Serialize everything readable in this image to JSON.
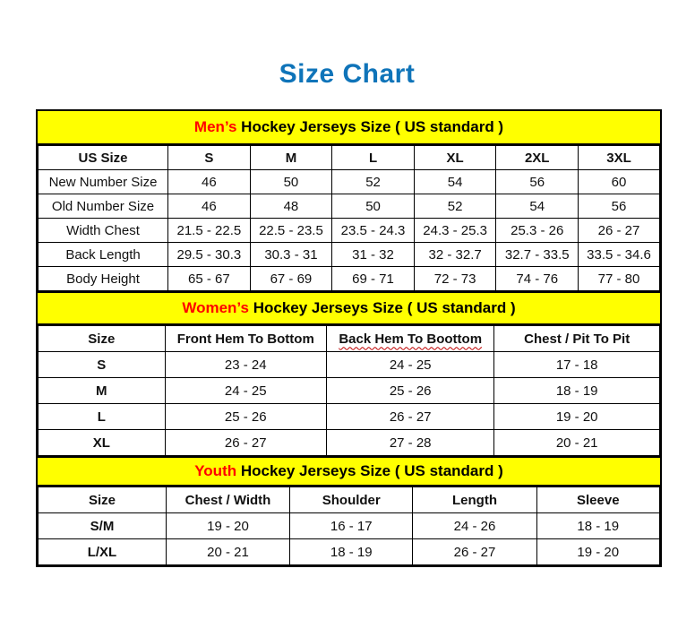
{
  "page": {
    "title": "Size Chart"
  },
  "colors": {
    "title_blue": "#0f74b9",
    "banner_yellow": "#ffff00",
    "accent_red": "#ff0000",
    "squiggle_red": "#c00000",
    "border_black": "#000000",
    "background": "#ffffff"
  },
  "chart_data": [
    {
      "type": "table",
      "banner": {
        "highlight": "Men’s",
        "rest": " Hockey Jerseys Size ( US standard )"
      },
      "columns": [
        "US Size",
        "S",
        "M",
        "L",
        "XL",
        "2XL",
        "3XL"
      ],
      "label_bold": false,
      "rows": [
        {
          "label": "New Number Size",
          "values": [
            "46",
            "50",
            "52",
            "54",
            "56",
            "60"
          ]
        },
        {
          "label": "Old Number Size",
          "values": [
            "46",
            "48",
            "50",
            "52",
            "54",
            "56"
          ]
        },
        {
          "label": "Width Chest",
          "values": [
            "21.5 - 22.5",
            "22.5 - 23.5",
            "23.5 - 24.3",
            "24.3 - 25.3",
            "25.3 - 26",
            "26 - 27"
          ]
        },
        {
          "label": "Back Length",
          "values": [
            "29.5 - 30.3",
            "30.3 - 31",
            "31 - 32",
            "32 - 32.7",
            "32.7 - 33.5",
            "33.5 - 34.6"
          ]
        },
        {
          "label": "Body Height",
          "values": [
            "65 - 67",
            "67 - 69",
            "69 - 71",
            "72 - 73",
            "74 - 76",
            "77 - 80"
          ]
        }
      ]
    },
    {
      "type": "table",
      "banner": {
        "highlight": "Women’s",
        "rest": " Hockey Jerseys Size ( US standard )"
      },
      "columns": [
        "Size",
        "Front Hem To Bottom",
        "Back Hem To Boottom",
        "Chest / Pit To Pit"
      ],
      "squiggle_column": 2,
      "label_bold": true,
      "rows": [
        {
          "label": "S",
          "values": [
            "23 - 24",
            "24 - 25",
            "17 - 18"
          ]
        },
        {
          "label": "M",
          "values": [
            "24 - 25",
            "25 - 26",
            "18 - 19"
          ]
        },
        {
          "label": "L",
          "values": [
            "25 - 26",
            "26 - 27",
            "19 - 20"
          ]
        },
        {
          "label": "XL",
          "values": [
            "26 - 27",
            "27 - 28",
            "20 - 21"
          ]
        }
      ]
    },
    {
      "type": "table",
      "banner": {
        "highlight": "Youth",
        "rest": " Hockey Jerseys Size ( US standard )"
      },
      "columns": [
        "Size",
        "Chest / Width",
        "Shoulder",
        "Length",
        "Sleeve"
      ],
      "label_bold": true,
      "rows": [
        {
          "label": "S/M",
          "values": [
            "19 - 20",
            "16 - 17",
            "24 - 26",
            "18 - 19"
          ]
        },
        {
          "label": "L/XL",
          "values": [
            "20 - 21",
            "18 - 19",
            "26 - 27",
            "19 - 20"
          ]
        }
      ]
    }
  ]
}
